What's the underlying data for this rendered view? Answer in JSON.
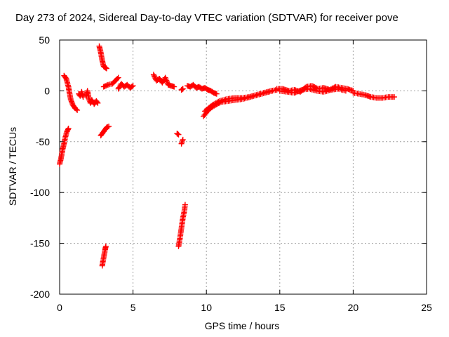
{
  "chart_data": {
    "type": "scatter",
    "title": "Day 273 of 2024, Sidereal Day-to-day VTEC variation (SDTVAR) for receiver pove",
    "xlabel": "GPS time / hours",
    "ylabel": "SDTVAR / TECUs",
    "xlim": [
      0,
      25
    ],
    "ylim": [
      -200,
      50
    ],
    "xticks": [
      0,
      5,
      10,
      15,
      20,
      25
    ],
    "yticks": [
      -200,
      -150,
      -100,
      -50,
      0,
      50
    ],
    "grid": true,
    "marker": "+",
    "series": [
      {
        "name": "SDTVAR",
        "color": "#ff0000",
        "segments": [
          {
            "x": [
              0.0,
              0.1,
              0.2,
              0.3,
              0.4,
              0.5,
              0.6
            ],
            "y": [
              -72,
              -66,
              -58,
              -52,
              -45,
              -40,
              -37
            ]
          },
          {
            "x": [
              0.3,
              0.45,
              0.6,
              0.75,
              0.9,
              1.05,
              1.2
            ],
            "y": [
              15,
              12,
              4,
              -8,
              -14,
              -17,
              -19
            ]
          },
          {
            "x": [
              1.3,
              1.4,
              1.5,
              1.6
            ],
            "y": [
              -3,
              -5,
              -1,
              -6
            ]
          },
          {
            "x": [
              1.8,
              1.9,
              2.0,
              2.1,
              2.2,
              2.35,
              2.5,
              2.6
            ],
            "y": [
              -5,
              0,
              -8,
              -12,
              -9,
              -13,
              -10,
              -12
            ]
          },
          {
            "x": [
              2.7,
              2.8,
              2.9,
              3.0,
              3.1,
              3.2
            ],
            "y": [
              44,
              38,
              30,
              24,
              23,
              22
            ]
          },
          {
            "x": [
              2.8,
              2.95,
              3.1,
              3.2,
              3.35
            ],
            "y": [
              -44,
              -41,
              -38,
              -36,
              -35
            ]
          },
          {
            "x": [
              2.9,
              2.95,
              3.0,
              3.05,
              3.1,
              3.15
            ],
            "y": [
              -172,
              -168,
              -164,
              -160,
              -156,
              -153
            ]
          },
          {
            "x": [
              3.0,
              3.3,
              3.6,
              3.8,
              4.0
            ],
            "y": [
              4,
              6,
              7,
              10,
              13
            ]
          },
          {
            "x": [
              4.0,
              4.2,
              4.4,
              4.6,
              4.8,
              5.0
            ],
            "y": [
              2,
              7,
              4,
              6,
              3,
              5
            ]
          },
          {
            "x": [
              6.4,
              6.6,
              6.8,
              7.0,
              7.2,
              7.4,
              7.6,
              7.8
            ],
            "y": [
              16,
              10,
              12,
              8,
              13,
              6,
              5,
              4
            ]
          },
          {
            "x": [
              8.0,
              8.1
            ],
            "y": [
              -42,
              -43
            ]
          },
          {
            "x": [
              8.3,
              8.4
            ],
            "y": [
              -52,
              -48
            ]
          },
          {
            "x": [
              8.1,
              8.2,
              8.3,
              8.4,
              8.5,
              8.55
            ],
            "y": [
              -153,
              -145,
              -135,
              -125,
              -118,
              -112
            ]
          },
          {
            "x": [
              8.3,
              8.4
            ],
            "y": [
              1,
              2
            ]
          },
          {
            "x": [
              8.7,
              8.9,
              9.1,
              9.3,
              9.5,
              9.7,
              9.9,
              10.1,
              10.3,
              10.5,
              10.7
            ],
            "y": [
              5,
              4,
              6,
              3,
              4,
              2,
              3,
              1,
              0,
              -2,
              -3
            ]
          },
          {
            "x": [
              9.8,
              10.2,
              10.6,
              11.0,
              11.5,
              12.0,
              12.5,
              13.0,
              13.5,
              14.0,
              14.5
            ],
            "y": [
              -25,
              -18,
              -14,
              -11,
              -10,
              -9,
              -8,
              -6,
              -4,
              -2,
              0
            ]
          },
          {
            "x": [
              9.9,
              10.4,
              10.9,
              11.4,
              11.9,
              12.4,
              12.9,
              13.4,
              13.9,
              14.4,
              14.8
            ],
            "y": [
              -20,
              -14,
              -10,
              -8,
              -7,
              -7,
              -6,
              -4,
              -2,
              0,
              1
            ]
          },
          {
            "x": [
              14.8,
              15.2,
              15.6,
              16.0,
              16.4,
              16.8,
              17.2,
              17.6,
              18.0,
              18.4,
              18.8,
              19.2,
              19.6,
              20.0
            ],
            "y": [
              2,
              2,
              0,
              1,
              -1,
              4,
              5,
              2,
              3,
              1,
              4,
              3,
              2,
              0
            ]
          },
          {
            "x": [
              15.0,
              15.5,
              16.0,
              16.5,
              17.0,
              17.5,
              18.0,
              18.5,
              19.0,
              19.5
            ],
            "y": [
              0,
              -1,
              -2,
              1,
              2,
              0,
              -1,
              1,
              2,
              0
            ]
          },
          {
            "x": [
              20.0,
              20.4,
              20.8,
              21.2,
              21.6,
              22.0,
              22.4,
              22.8
            ],
            "y": [
              -2,
              -3,
              -4,
              -6,
              -7,
              -7,
              -6,
              -6
            ]
          }
        ]
      }
    ]
  }
}
